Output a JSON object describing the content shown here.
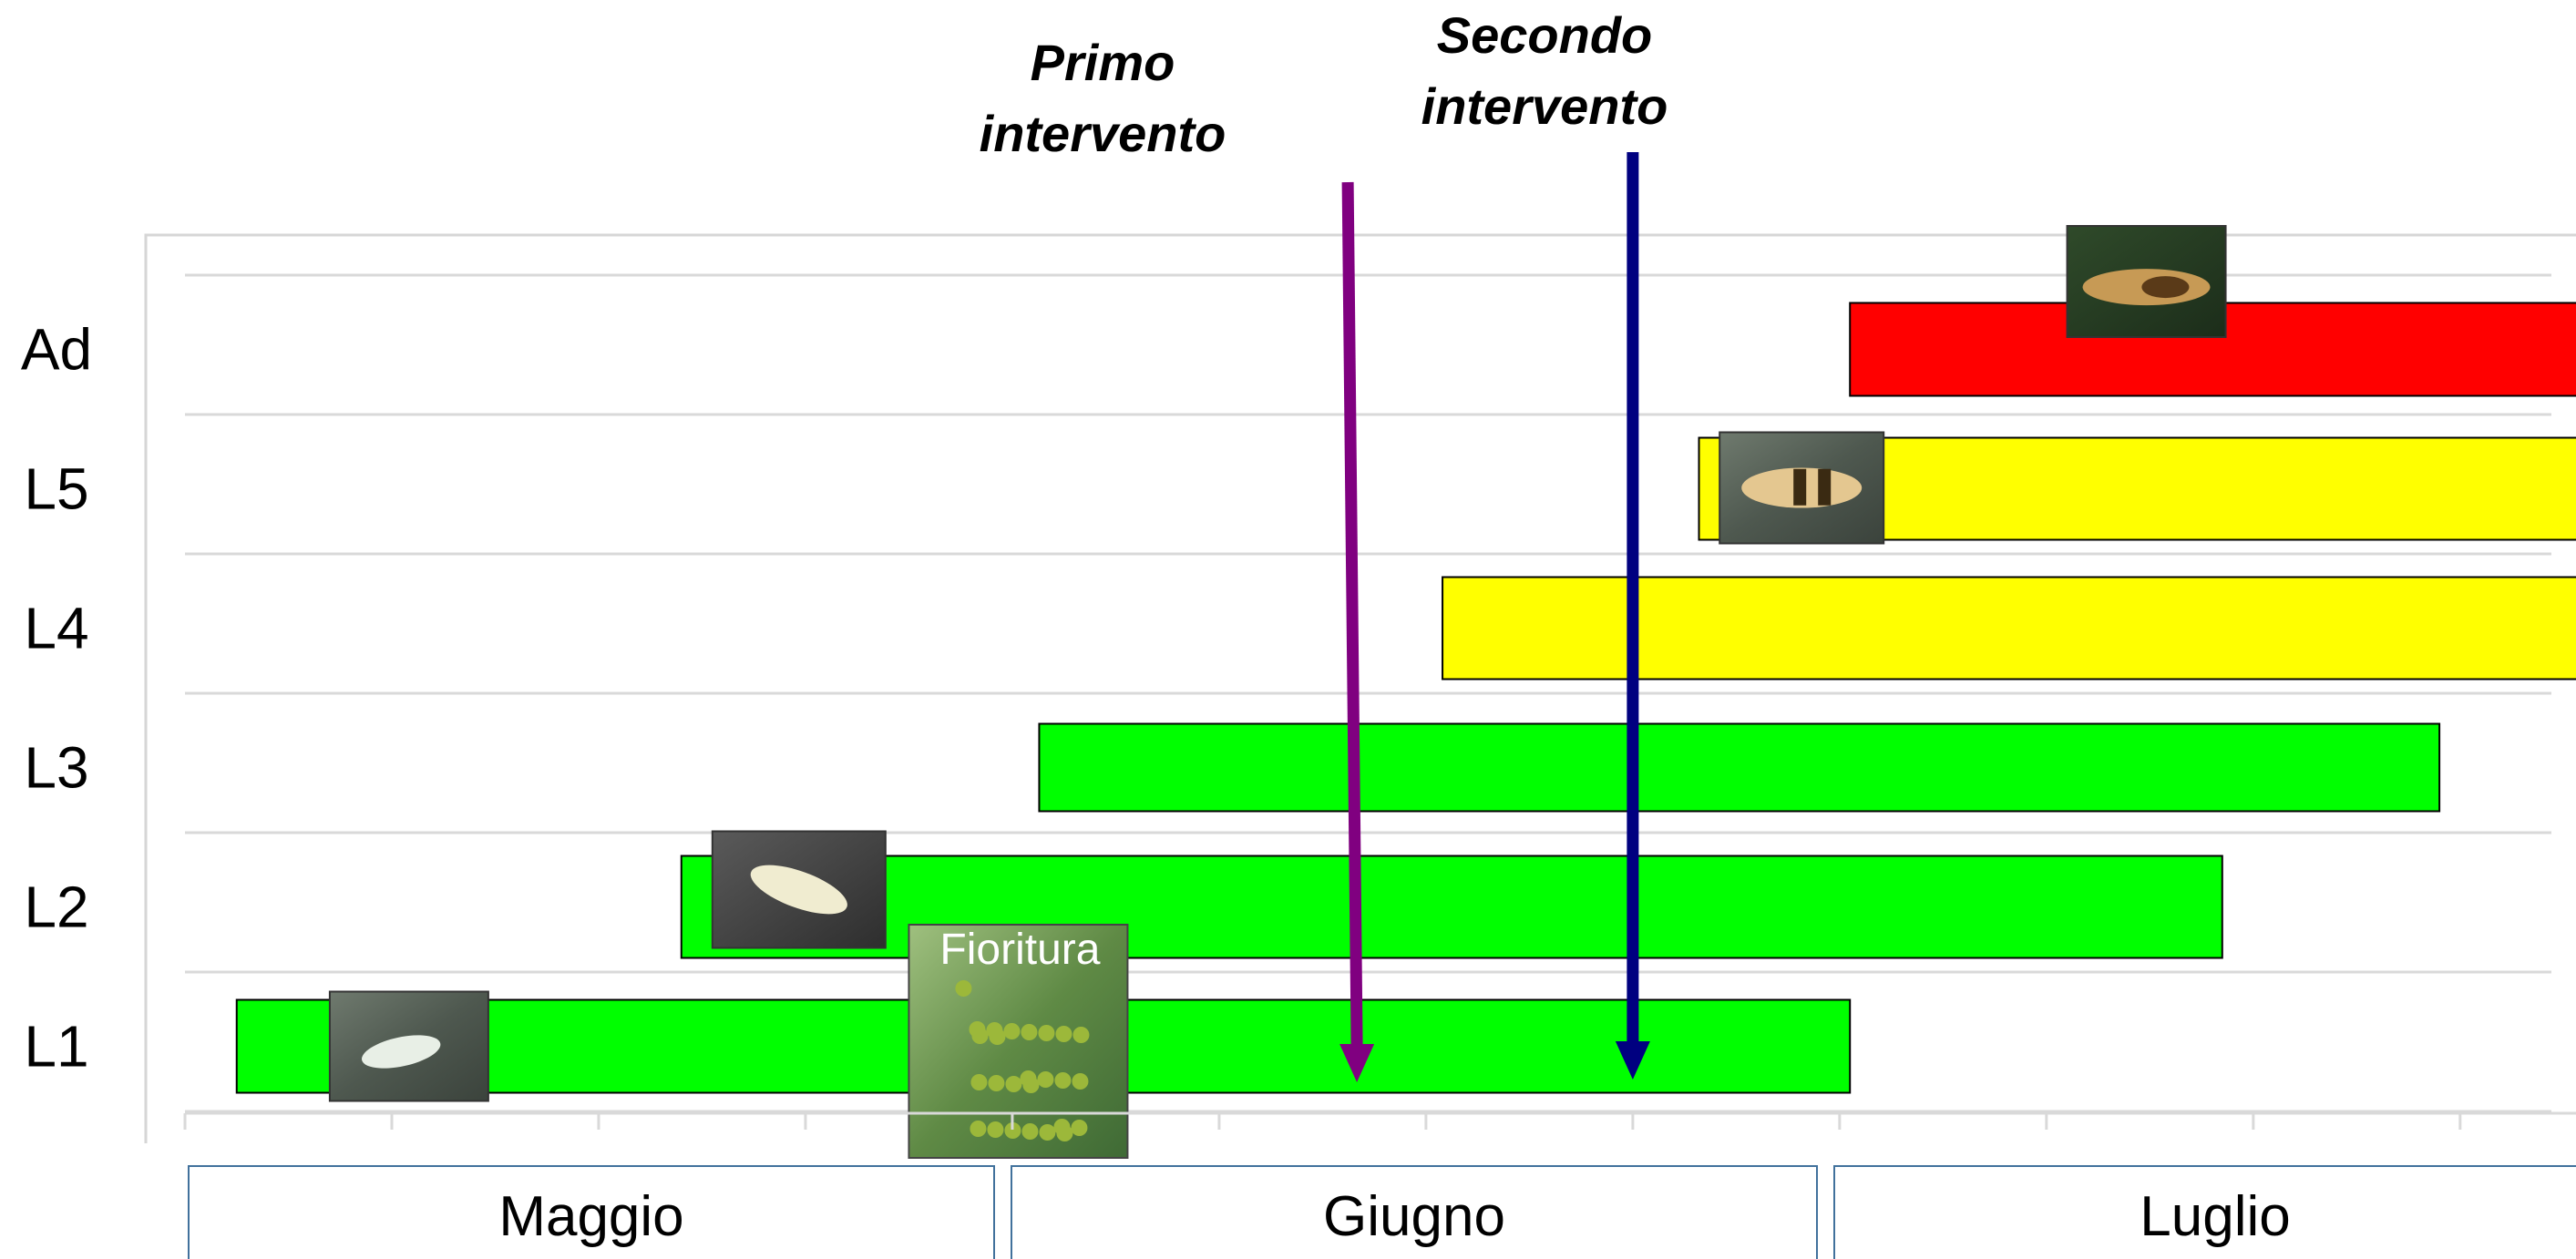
{
  "chart_data": {
    "type": "bar",
    "orientation": "horizontal",
    "stacked_offset": true,
    "categories": [
      "L1",
      "L2",
      "L3",
      "L4",
      "L5",
      "Ad"
    ],
    "series": [
      {
        "values": [
          {
            "start": 0.25,
            "end": 8.05
          },
          {
            "start": 2.4,
            "end": 9.85
          },
          {
            "start": 4.13,
            "end": 10.9
          },
          {
            "start": 6.08,
            "end": 11.6
          },
          {
            "start": 7.32,
            "end": 11.6
          },
          {
            "start": 8.05,
            "end": 11.6
          }
        ],
        "colors": [
          "#00ff00",
          "#00ff00",
          "#00ff00",
          "#ffff00",
          "#ffff00",
          "#ff0000"
        ]
      }
    ],
    "x_range": [
      0,
      11.6
    ],
    "x_major_ticks": 12,
    "grid": true,
    "legend": "none",
    "months": [
      "Maggio",
      "Giugno",
      "Luglio"
    ],
    "annotations": [
      {
        "label_line1": "Primo",
        "label_line2": "intervento",
        "x": 5.6,
        "color": "#800080",
        "type": "arrow"
      },
      {
        "label_line1": "Secondo",
        "label_line2": "intervento",
        "x": 7.0,
        "color": "#000080",
        "type": "arrow"
      }
    ],
    "photos": [
      {
        "name": "l1-nymph-photo",
        "category": "L1",
        "x": 0.7
      },
      {
        "name": "l2-nymph-photo",
        "category": "L2",
        "x": 2.55
      },
      {
        "name": "l5-nymph-photo",
        "category": "L5",
        "x": 7.42
      },
      {
        "name": "adult-photo",
        "category": "Ad",
        "x": 9.1
      }
    ],
    "flowering": {
      "label": "Fioritura",
      "x": 3.5
    }
  }
}
